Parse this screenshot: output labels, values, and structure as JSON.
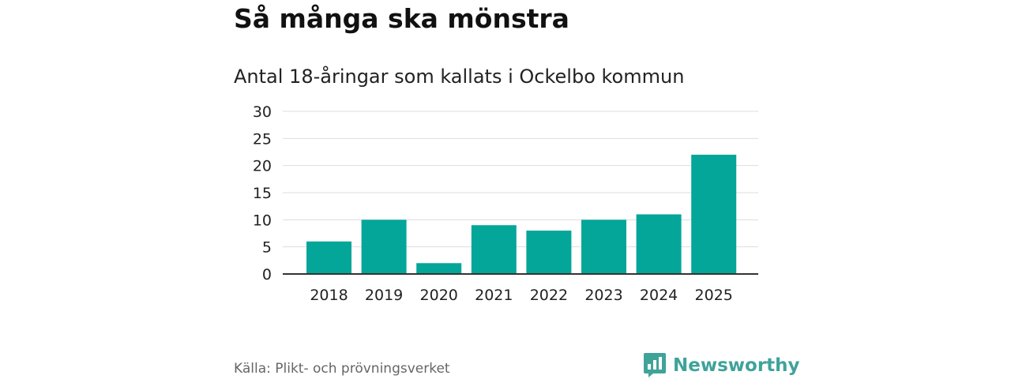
{
  "header": {
    "title": "Så många ska mönstra",
    "subtitle": "Antal 18-åringar som kallats i Ockelbo kommun"
  },
  "footer": {
    "source": "Källa: Plikt- och prövningsverket",
    "brand_name": "Newsworthy",
    "brand_icon": "bar-chart-speech-icon"
  },
  "colors": {
    "bar": "#04A699",
    "brand": "#3FA39A",
    "grid": "#DDDDDD",
    "axis": "#333333"
  },
  "chart_data": {
    "type": "bar",
    "title": "Så många ska mönstra",
    "subtitle": "Antal 18-åringar som kallats i Ockelbo kommun",
    "xlabel": "",
    "ylabel": "",
    "categories": [
      "2018",
      "2019",
      "2020",
      "2021",
      "2022",
      "2023",
      "2024",
      "2025"
    ],
    "values": [
      6,
      10,
      2,
      9,
      8,
      10,
      11,
      22
    ],
    "ylim": [
      0,
      30
    ],
    "yticks": [
      0,
      5,
      10,
      15,
      20,
      25,
      30
    ],
    "grid": true,
    "legend": "none"
  }
}
